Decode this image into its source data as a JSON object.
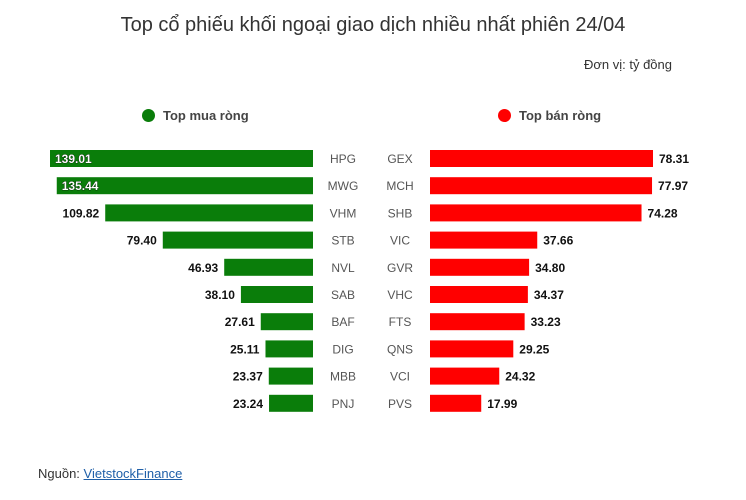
{
  "chart_data": {
    "type": "bar",
    "title": "Top cổ phiếu khối ngoại giao dịch nhiều nhất phiên 24/04",
    "unit": "Đơn vị: tỷ đồng",
    "legend": {
      "buy": {
        "label": "Top mua ròng",
        "color": "#0a7d0a"
      },
      "sell": {
        "label": "Top bán ròng",
        "color": "#ff0000"
      }
    },
    "buy": {
      "categories": [
        "HPG",
        "MWG",
        "VHM",
        "STB",
        "NVL",
        "SAB",
        "BAF",
        "DIG",
        "MBB",
        "PNJ"
      ],
      "values": [
        139.01,
        135.44,
        109.82,
        79.4,
        46.93,
        38.1,
        27.61,
        25.11,
        23.37,
        23.24
      ],
      "labels": [
        "139.01",
        "135.44",
        "109.82",
        "79.40",
        "46.93",
        "38.10",
        "27.61",
        "25.11",
        "23.37",
        "23.24"
      ]
    },
    "sell": {
      "categories": [
        "GEX",
        "MCH",
        "SHB",
        "VIC",
        "GVR",
        "VHC",
        "FTS",
        "QNS",
        "VCI",
        "PVS"
      ],
      "values": [
        78.31,
        77.97,
        74.28,
        37.66,
        34.8,
        34.37,
        33.23,
        29.25,
        24.32,
        17.99
      ],
      "labels": [
        "78.31",
        "77.97",
        "74.28",
        "37.66",
        "34.80",
        "34.37",
        "33.23",
        "29.25",
        "24.32",
        "17.99"
      ]
    }
  },
  "source": {
    "prefix": "Nguồn: ",
    "link_text": "VietstockFinance"
  }
}
